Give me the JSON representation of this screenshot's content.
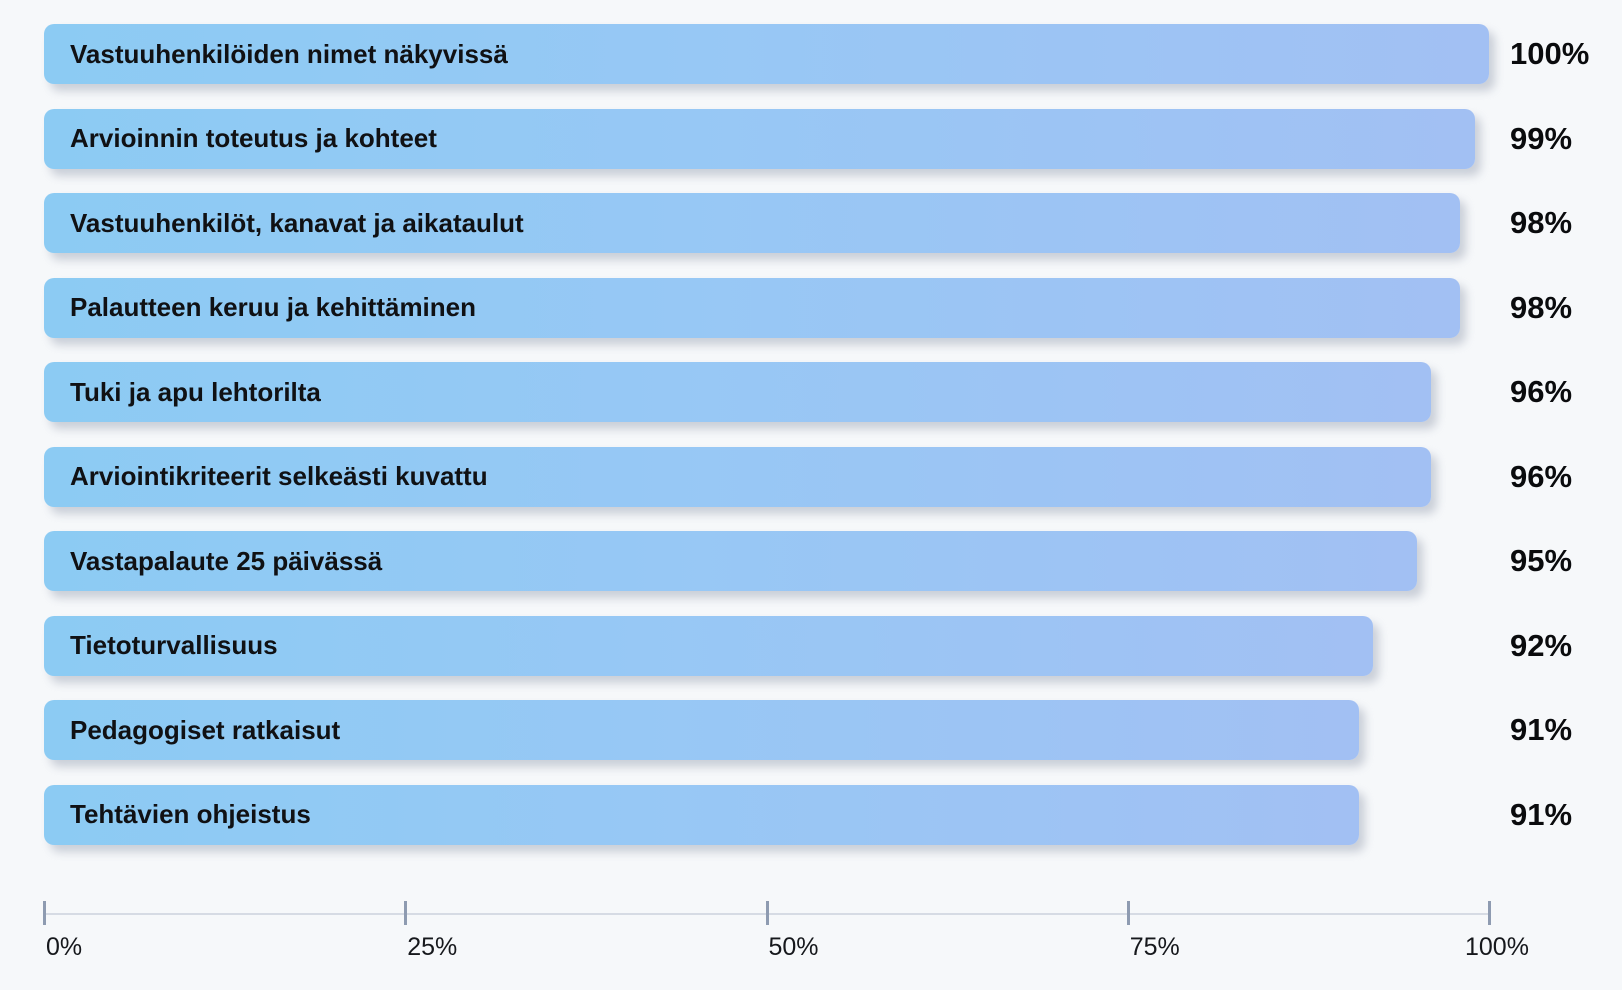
{
  "background_color": "#f6f8fa",
  "chart_data": {
    "type": "bar",
    "orientation": "horizontal",
    "title": "",
    "xlabel": "",
    "ylabel": "",
    "categories": [
      "Vastuuhenkilöiden nimet näkyvissä",
      "Arvioinnin toteutus ja kohteet",
      "Vastuuhenkilöt, kanavat ja aikataulut",
      "Palautteen keruu ja kehittäminen",
      "Tuki ja apu lehtorilta",
      "Arviointikriteerit selkeästi kuvattu",
      "Vastapalaute 25 päivässä",
      "Tietoturvallisuus",
      "Pedagogiset ratkaisut",
      "Tehtävien ohjeistus"
    ],
    "values": [
      100,
      99,
      98,
      98,
      96,
      96,
      95,
      92,
      91,
      91
    ],
    "value_labels": [
      "100%",
      "99%",
      "98%",
      "98%",
      "96%",
      "96%",
      "95%",
      "92%",
      "91%",
      "91%"
    ],
    "xlim": [
      0,
      100
    ],
    "x_tick_values": [
      0,
      25,
      50,
      75,
      100
    ],
    "x_tick_labels": [
      "0%",
      "25%",
      "50%",
      "75%",
      "100%"
    ],
    "grid": false,
    "legend": false,
    "bar_color_start": "#8ccbf3",
    "bar_color_end": "#a2c0f3",
    "label_color": "#101114",
    "value_label_color": "#0a0b0d"
  }
}
